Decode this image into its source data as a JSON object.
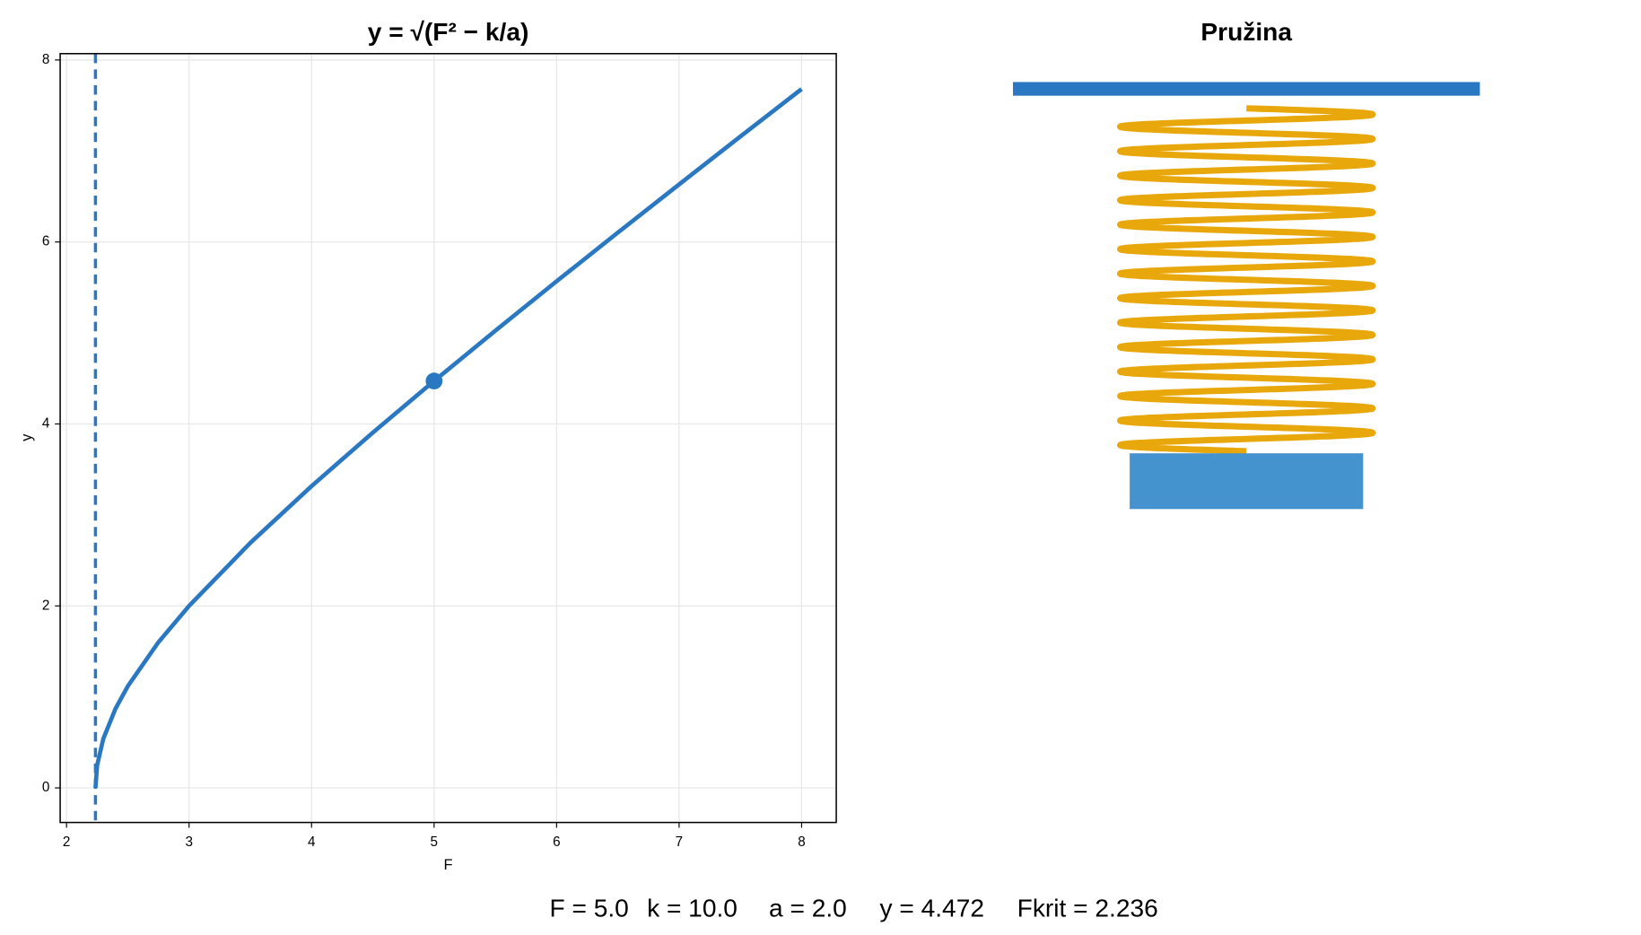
{
  "chart_data": {
    "type": "line",
    "title": "y = √(F² − k/a)",
    "x_label": "F",
    "y_label": "y",
    "x": [
      2.236,
      2.25,
      2.3,
      2.4,
      2.5,
      2.75,
      3,
      3.5,
      4,
      4.5,
      5,
      5.5,
      6,
      6.5,
      7,
      7.5,
      8
    ],
    "values": [
      0,
      0.25,
      0.539,
      0.872,
      1.118,
      1.601,
      2,
      2.693,
      3.317,
      3.905,
      4.472,
      5.025,
      5.568,
      6.103,
      6.633,
      7.159,
      7.681
    ],
    "color": "#2b78c2",
    "marker": {
      "x": 5,
      "y": 4.472
    },
    "vline": 2.236,
    "xlim": [
      1.948,
      8.283
    ],
    "ylim": [
      -0.38,
      8.07
    ],
    "xticks": [
      2,
      3,
      4,
      5,
      6,
      7,
      8
    ],
    "yticks": [
      0,
      2,
      4,
      6,
      8
    ],
    "grid": true
  },
  "diagram": {
    "title": "Pružina"
  },
  "status": [
    "F = 5.0",
    "k = 10.0",
    "a = 2.0",
    "y = 4.472",
    "Fkrit = 2.236"
  ]
}
